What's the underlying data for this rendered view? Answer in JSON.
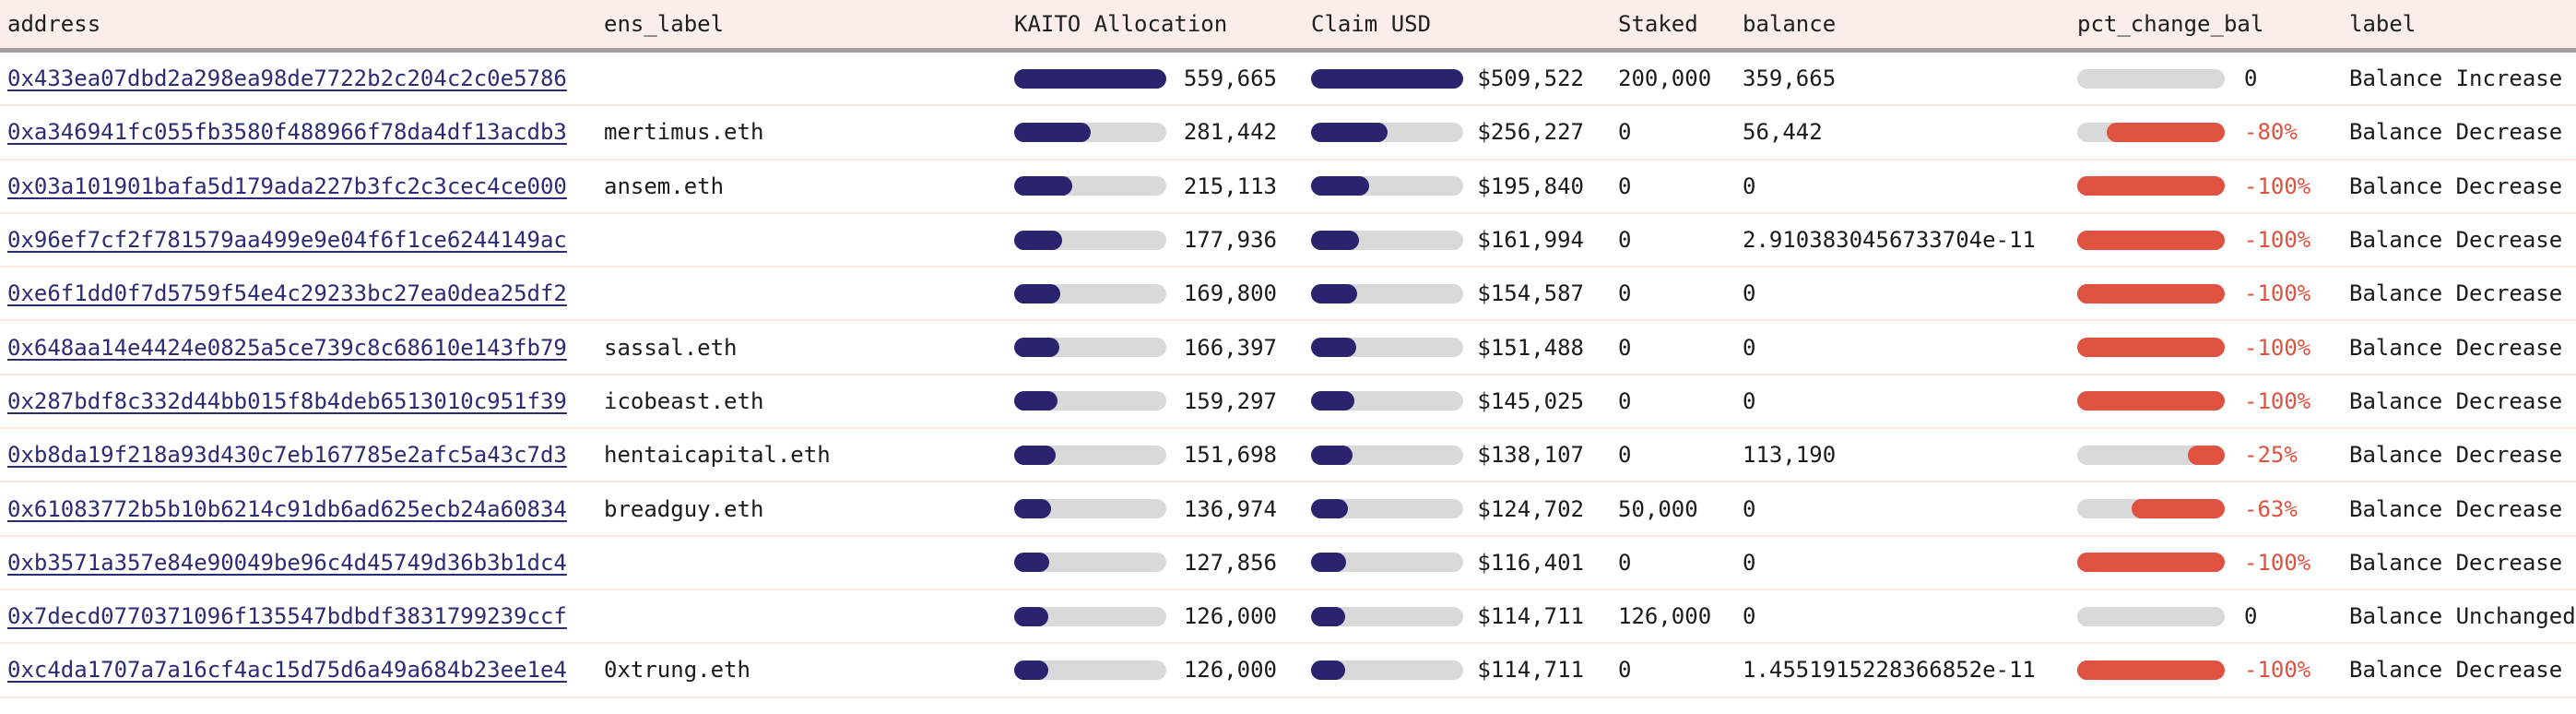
{
  "colors": {
    "header_bg": "#fbeeea",
    "header_divider": "#a2a0a3",
    "row_divider": "#f9e7e2",
    "bar_navy": "#2a236e",
    "bar_track_gray": "#d9d9d9",
    "negative_red": "#df5240",
    "link_navy": "#2c2b75",
    "text": "#1b1b1b"
  },
  "table": {
    "columns": [
      {
        "key": "address",
        "label": "address"
      },
      {
        "key": "ens",
        "label": "ens_label"
      },
      {
        "key": "kaito",
        "label": "KAITO Allocation"
      },
      {
        "key": "claim",
        "label": "Claim USD"
      },
      {
        "key": "staked",
        "label": "Staked"
      },
      {
        "key": "balance",
        "label": "balance"
      },
      {
        "key": "pct",
        "label": "pct_change_bal"
      },
      {
        "key": "label",
        "label": "label"
      }
    ],
    "kaito_max": 559665,
    "rows": [
      {
        "address": "0x433ea07dbd2a298ea98de7722b2c204c2c0e5786",
        "ens": "",
        "kaito": "559,665",
        "kaito_value": 559665,
        "claim": "$509,522",
        "staked": "200,000",
        "balance": "359,665",
        "pct_text": "0",
        "pct_value": 0,
        "label": "Balance Increase"
      },
      {
        "address": "0xa346941fc055fb3580f488966f78da4df13acdb3",
        "ens": "mertimus.eth",
        "kaito": "281,442",
        "kaito_value": 281442,
        "claim": "$256,227",
        "staked": "0",
        "balance": "56,442",
        "pct_text": "-80%",
        "pct_value": -80,
        "label": "Balance Decrease"
      },
      {
        "address": "0x03a101901bafa5d179ada227b3fc2c3cec4ce000",
        "ens": "ansem.eth",
        "kaito": "215,113",
        "kaito_value": 215113,
        "claim": "$195,840",
        "staked": "0",
        "balance": "0",
        "pct_text": "-100%",
        "pct_value": -100,
        "label": "Balance Decrease"
      },
      {
        "address": "0x96ef7cf2f781579aa499e9e04f6f1ce6244149ac",
        "ens": "",
        "kaito": "177,936",
        "kaito_value": 177936,
        "claim": "$161,994",
        "staked": "0",
        "balance": "2.9103830456733704e-11",
        "pct_text": "-100%",
        "pct_value": -100,
        "label": "Balance Decrease"
      },
      {
        "address": "0xe6f1dd0f7d5759f54e4c29233bc27ea0dea25df2",
        "ens": "",
        "kaito": "169,800",
        "kaito_value": 169800,
        "claim": "$154,587",
        "staked": "0",
        "balance": "0",
        "pct_text": "-100%",
        "pct_value": -100,
        "label": "Balance Decrease"
      },
      {
        "address": "0x648aa14e4424e0825a5ce739c8c68610e143fb79",
        "ens": "sassal.eth",
        "kaito": "166,397",
        "kaito_value": 166397,
        "claim": "$151,488",
        "staked": "0",
        "balance": "0",
        "pct_text": "-100%",
        "pct_value": -100,
        "label": "Balance Decrease"
      },
      {
        "address": "0x287bdf8c332d44bb015f8b4deb6513010c951f39",
        "ens": "icobeast.eth",
        "kaito": "159,297",
        "kaito_value": 159297,
        "claim": "$145,025",
        "staked": "0",
        "balance": "0",
        "pct_text": "-100%",
        "pct_value": -100,
        "label": "Balance Decrease"
      },
      {
        "address": "0xb8da19f218a93d430c7eb167785e2afc5a43c7d3",
        "ens": "hentaicapital.eth",
        "kaito": "151,698",
        "kaito_value": 151698,
        "claim": "$138,107",
        "staked": "0",
        "balance": "113,190",
        "pct_text": "-25%",
        "pct_value": -25,
        "label": "Balance Decrease"
      },
      {
        "address": "0x61083772b5b10b6214c91db6ad625ecb24a60834",
        "ens": "breadguy.eth",
        "kaito": "136,974",
        "kaito_value": 136974,
        "claim": "$124,702",
        "staked": "50,000",
        "balance": "0",
        "pct_text": "-63%",
        "pct_value": -63,
        "label": "Balance Decrease"
      },
      {
        "address": "0xb3571a357e84e90049be96c4d45749d36b3b1dc4",
        "ens": "",
        "kaito": "127,856",
        "kaito_value": 127856,
        "claim": "$116,401",
        "staked": "0",
        "balance": "0",
        "pct_text": "-100%",
        "pct_value": -100,
        "label": "Balance Decrease"
      },
      {
        "address": "0x7decd0770371096f135547bdbdf3831799239ccf",
        "ens": "",
        "kaito": "126,000",
        "kaito_value": 126000,
        "claim": "$114,711",
        "staked": "126,000",
        "balance": "0",
        "pct_text": "0",
        "pct_value": 0,
        "label": "Balance Unchanged"
      },
      {
        "address": "0xc4da1707a7a16cf4ac15d75d6a49a684b23ee1e4",
        "ens": "0xtrung.eth",
        "kaito": "126,000",
        "kaito_value": 126000,
        "claim": "$114,711",
        "staked": "0",
        "balance": "1.4551915228366852e-11",
        "pct_text": "-100%",
        "pct_value": -100,
        "label": "Balance Decrease"
      }
    ]
  }
}
